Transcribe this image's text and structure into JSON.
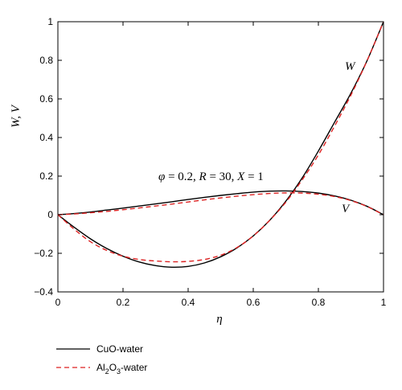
{
  "chart_data": {
    "type": "line",
    "xlabel": "η",
    "ylabel": "W, V",
    "xlim": [
      0,
      1
    ],
    "ylim": [
      -0.4,
      1
    ],
    "xticks": [
      0,
      0.2,
      0.4,
      0.6,
      0.8,
      1
    ],
    "yticks": [
      -0.4,
      -0.2,
      0,
      0.2,
      0.4,
      0.6,
      0.8,
      1
    ],
    "x_tick_labels": [
      "0",
      "0.2",
      "0.4",
      "0.6",
      "0.8",
      "1"
    ],
    "y_tick_labels": [
      "−0.4",
      "−0.2",
      "0",
      "0.2",
      "0.4",
      "0.6",
      "0.8",
      "1"
    ],
    "grid": false,
    "legend_position": "below-left",
    "annotation": {
      "phi": "φ",
      "phi_val": " = 0.2, ",
      "R": "R",
      "R_val": " = 30, ",
      "X": "X",
      "X_val": " = 1"
    },
    "curve_labels": {
      "W": "W",
      "V": "V"
    },
    "series": [
      {
        "name": "CuO-water",
        "color": "#000000",
        "dash": "solid",
        "curves": {
          "W": {
            "x": [
              0,
              0.05,
              0.1,
              0.15,
              0.2,
              0.25,
              0.3,
              0.35,
              0.4,
              0.45,
              0.5,
              0.55,
              0.6,
              0.65,
              0.7,
              0.75,
              0.8,
              0.85,
              0.9,
              0.95,
              1
            ],
            "y": [
              0,
              -0.065,
              -0.125,
              -0.175,
              -0.215,
              -0.245,
              -0.264,
              -0.272,
              -0.268,
              -0.25,
              -0.218,
              -0.172,
              -0.11,
              -0.03,
              0.07,
              0.19,
              0.33,
              0.48,
              0.63,
              0.8,
              1.0
            ]
          },
          "V": {
            "x": [
              0,
              0.05,
              0.1,
              0.15,
              0.2,
              0.25,
              0.3,
              0.35,
              0.4,
              0.45,
              0.5,
              0.55,
              0.6,
              0.65,
              0.7,
              0.75,
              0.8,
              0.85,
              0.9,
              0.95,
              1
            ],
            "y": [
              0,
              0.006,
              0.014,
              0.024,
              0.034,
              0.045,
              0.056,
              0.067,
              0.079,
              0.09,
              0.1,
              0.109,
              0.117,
              0.122,
              0.123,
              0.12,
              0.112,
              0.097,
              0.075,
              0.043,
              0
            ]
          }
        }
      },
      {
        "name": "Al₂O₃-water",
        "color": "#dd2222",
        "dash": "dashed",
        "curves": {
          "W": {
            "x": [
              0,
              0.05,
              0.1,
              0.15,
              0.2,
              0.25,
              0.3,
              0.35,
              0.4,
              0.45,
              0.5,
              0.55,
              0.6,
              0.65,
              0.7,
              0.75,
              0.8,
              0.85,
              0.9,
              0.95,
              1
            ],
            "y": [
              0,
              -0.075,
              -0.14,
              -0.185,
              -0.215,
              -0.232,
              -0.24,
              -0.244,
              -0.242,
              -0.232,
              -0.21,
              -0.17,
              -0.11,
              -0.03,
              0.065,
              0.18,
              0.31,
              0.46,
              0.62,
              0.8,
              1.0
            ]
          },
          "V": {
            "x": [
              0,
              0.05,
              0.1,
              0.15,
              0.2,
              0.25,
              0.3,
              0.35,
              0.4,
              0.45,
              0.5,
              0.55,
              0.6,
              0.65,
              0.7,
              0.75,
              0.8,
              0.85,
              0.9,
              0.95,
              1
            ],
            "y": [
              0,
              0.004,
              0.01,
              0.017,
              0.026,
              0.035,
              0.045,
              0.055,
              0.066,
              0.077,
              0.087,
              0.096,
              0.104,
              0.11,
              0.113,
              0.112,
              0.106,
              0.094,
              0.073,
              0.042,
              0
            ]
          }
        }
      }
    ]
  },
  "legend": {
    "items": [
      {
        "label": "CuO-water",
        "color": "#000000",
        "dash": "solid"
      },
      {
        "label_main": "Al",
        "label_sub": "2",
        "label_main2": "O",
        "label_sub2": "3",
        "label_rest": "-water",
        "color": "#dd2222",
        "dash": "dashed"
      }
    ]
  }
}
